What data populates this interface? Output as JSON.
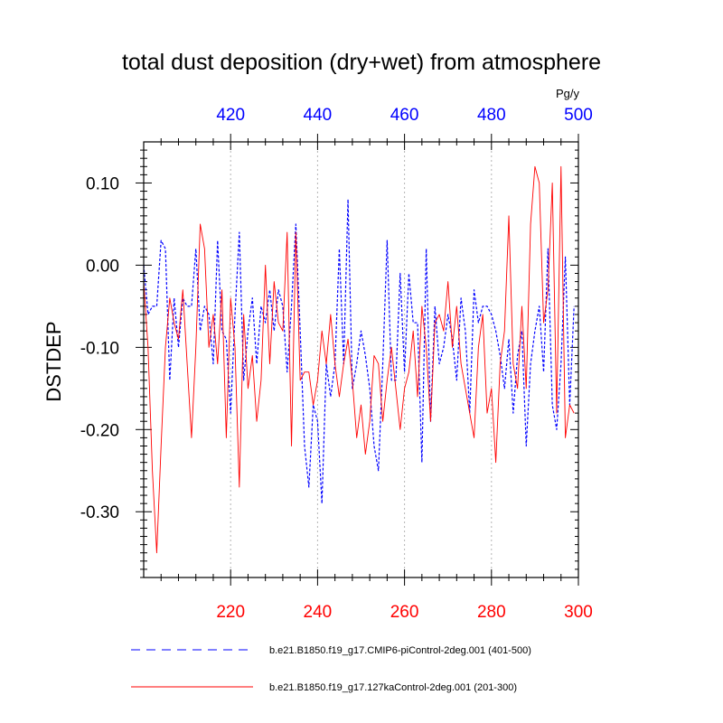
{
  "chart_data": {
    "type": "line",
    "title": "total dust deposition (dry+wet) from atmosphere",
    "units": "Pg/y",
    "ylabel": "DSTDEP",
    "ylim": [
      -0.38,
      0.15
    ],
    "yticks": [
      0.1,
      0.0,
      -0.1,
      -0.2,
      -0.3
    ],
    "ytick_labels": [
      "0.10",
      "0.00",
      "-0.10",
      "-0.20",
      "-0.30"
    ],
    "bottom_axis": {
      "range": [
        200,
        300
      ],
      "ticks": [
        220,
        240,
        260,
        280,
        300
      ],
      "tick_labels": [
        "220",
        "240",
        "260",
        "280",
        "300"
      ],
      "color": "#ff0000"
    },
    "top_axis": {
      "range": [
        400,
        500
      ],
      "ticks": [
        420,
        440,
        460,
        480,
        500
      ],
      "tick_labels": [
        "420",
        "440",
        "460",
        "480",
        "500"
      ],
      "color": "#0000ff"
    },
    "grid_x": true,
    "series": [
      {
        "name": "b.e21.B1850.f19_g17.CMIP6-piControl-2deg.001 (401-500)",
        "color": "#0000ff",
        "style": "dashed",
        "axis": "top",
        "x_start": 401,
        "values": [
          0.0,
          -0.06,
          -0.05,
          -0.05,
          0.03,
          0.02,
          -0.14,
          -0.04,
          -0.1,
          -0.04,
          -0.05,
          -0.05,
          0.02,
          -0.08,
          -0.05,
          -0.06,
          -0.12,
          0.03,
          -0.08,
          -0.09,
          -0.18,
          -0.06,
          0.04,
          -0.14,
          -0.08,
          -0.04,
          -0.12,
          -0.05,
          -0.07,
          -0.03,
          -0.08,
          -0.03,
          -0.05,
          -0.13,
          -0.05,
          0.05,
          -0.08,
          -0.22,
          -0.27,
          -0.17,
          -0.19,
          -0.29,
          -0.12,
          -0.16,
          -0.12,
          0.02,
          -0.12,
          0.08,
          -0.15,
          -0.12,
          -0.08,
          -0.11,
          -0.15,
          -0.22,
          -0.25,
          -0.12,
          0.03,
          -0.14,
          -0.14,
          -0.01,
          -0.13,
          -0.01,
          -0.07,
          -0.07,
          -0.24,
          0.02,
          -0.19,
          -0.05,
          -0.12,
          -0.1,
          -0.06,
          -0.09,
          -0.14,
          -0.04,
          -0.08,
          -0.18,
          -0.03,
          -0.07,
          -0.05,
          -0.05,
          -0.06,
          -0.08,
          -0.11,
          -0.15,
          -0.09,
          -0.18,
          -0.11,
          -0.08,
          -0.22,
          -0.12,
          -0.08,
          -0.05,
          -0.13,
          0.02,
          -0.17,
          -0.2,
          -0.12,
          0.01,
          -0.17,
          -0.05
        ]
      },
      {
        "name": "b.e21.B1850.f19_g17.127kaControl-2deg.001 (201-300)",
        "color": "#ff0000",
        "style": "solid",
        "axis": "bottom",
        "x_start": 201,
        "values": [
          -0.02,
          -0.1,
          -0.25,
          -0.35,
          -0.22,
          -0.1,
          -0.04,
          -0.07,
          -0.09,
          -0.03,
          -0.12,
          -0.21,
          -0.1,
          0.05,
          0.02,
          -0.1,
          -0.06,
          -0.12,
          -0.03,
          -0.21,
          -0.04,
          -0.1,
          -0.27,
          -0.06,
          -0.15,
          -0.11,
          -0.19,
          -0.14,
          0.0,
          -0.12,
          -0.02,
          -0.07,
          -0.08,
          0.04,
          -0.22,
          0.04,
          -0.14,
          -0.13,
          -0.13,
          -0.17,
          -0.14,
          -0.08,
          -0.12,
          -0.06,
          -0.12,
          -0.16,
          -0.12,
          -0.09,
          -0.14,
          -0.21,
          -0.17,
          -0.23,
          -0.19,
          -0.11,
          -0.12,
          -0.19,
          -0.14,
          -0.1,
          -0.15,
          -0.2,
          -0.15,
          -0.13,
          -0.08,
          -0.16,
          -0.05,
          -0.1,
          -0.19,
          -0.07,
          -0.06,
          -0.08,
          -0.02,
          -0.1,
          -0.05,
          -0.12,
          -0.15,
          -0.18,
          -0.21,
          -0.1,
          -0.06,
          -0.18,
          -0.15,
          -0.24,
          -0.12,
          -0.08,
          0.06,
          -0.12,
          -0.15,
          -0.05,
          -0.15,
          0.05,
          0.12,
          0.1,
          -0.07,
          -0.03,
          0.1,
          -0.18,
          0.12,
          -0.21,
          -0.17,
          -0.18
        ]
      }
    ],
    "legend_position": "bottom"
  }
}
